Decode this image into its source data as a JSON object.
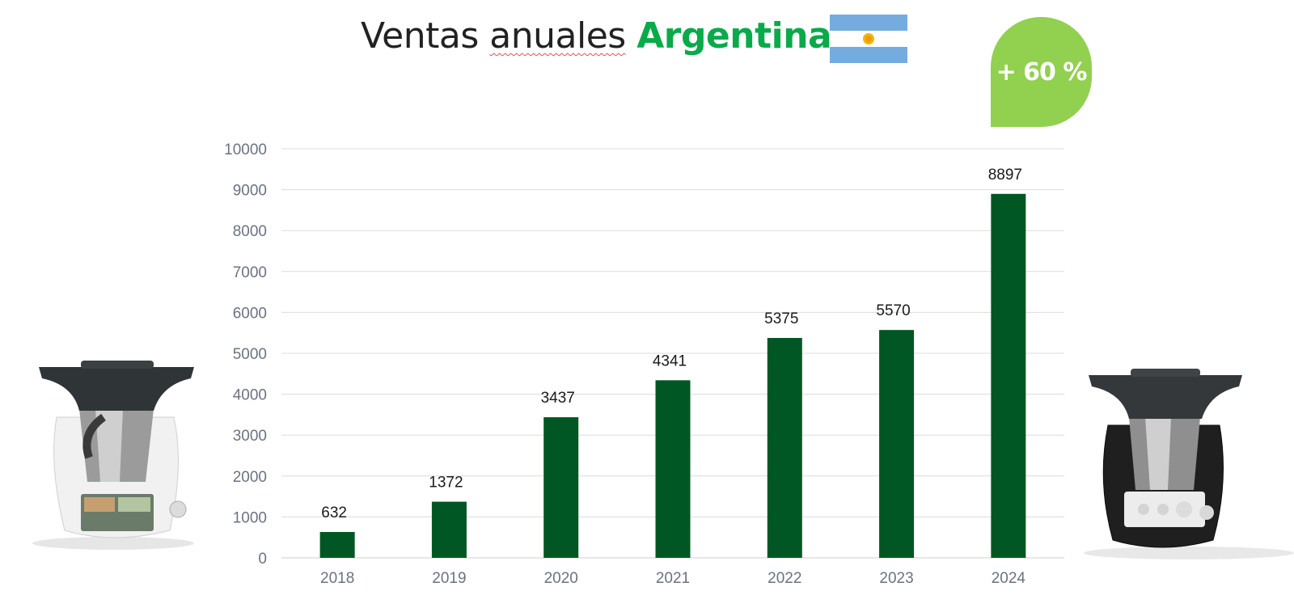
{
  "title": {
    "part1": "Ventas ",
    "part2": "anuales",
    "part3": " ",
    "highlight": "Argentina"
  },
  "badge": {
    "text": "+ 60 %",
    "color": "#92d050"
  },
  "flag": {
    "name": "argentina-flag",
    "colors": [
      "#74acdf",
      "#ffffff",
      "#f6b40e"
    ]
  },
  "chart_data": {
    "type": "bar",
    "categories": [
      "2018",
      "2019",
      "2020",
      "2021",
      "2022",
      "2023",
      "2024"
    ],
    "values": [
      632,
      1372,
      3437,
      4341,
      5375,
      5570,
      8897
    ],
    "data_labels": [
      "632",
      "1372",
      "3437",
      "4341",
      "5375",
      "5570",
      "8897"
    ],
    "ylim": [
      0,
      10000
    ],
    "yticks": [
      0,
      1000,
      2000,
      3000,
      4000,
      5000,
      6000,
      7000,
      8000,
      9000,
      10000
    ],
    "bar_color": "#005723",
    "grid": true,
    "xlabel": "",
    "ylabel": ""
  },
  "images": {
    "left": "thermomix-white-device",
    "right": "thermomix-black-device"
  }
}
